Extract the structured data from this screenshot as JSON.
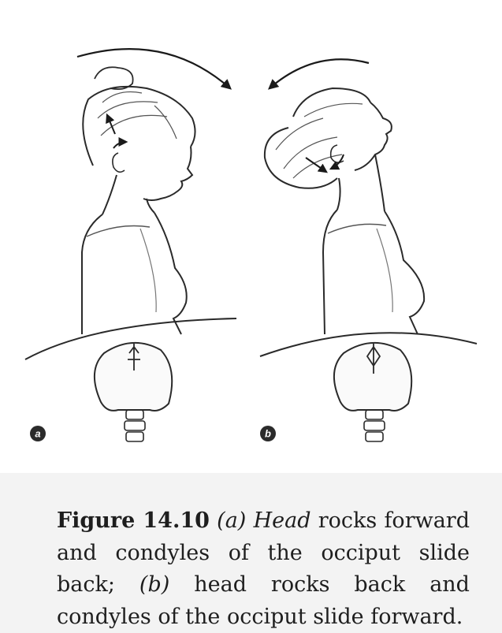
{
  "figure": {
    "panel_a_label": "a",
    "panel_b_label": "b",
    "caption": {
      "number": "Figure 14.10",
      "panel_a_marker": "(a)",
      "panel_a_term": "Head",
      "panel_a_text": "rocks forward and condyles of the occiput slide back;",
      "panel_b_marker": "(b)",
      "panel_b_text": "head rocks back and condyles of the occiput slide forward."
    }
  }
}
